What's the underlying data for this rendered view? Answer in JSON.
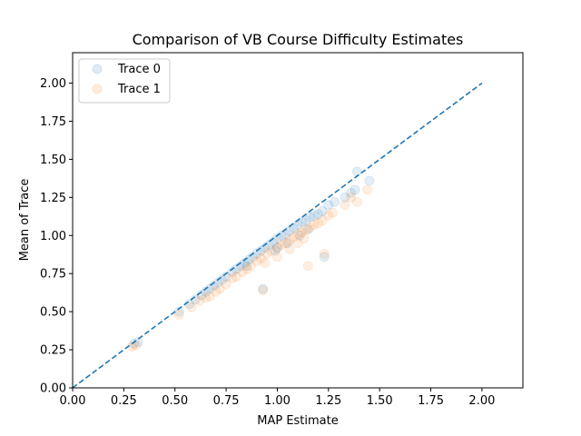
{
  "chart_data": {
    "type": "scatter",
    "title": "Comparison of VB Course Difficulty Estimates",
    "xlabel": "MAP Estimate",
    "ylabel": "Mean of Trace",
    "xlim": [
      0.0,
      2.2
    ],
    "ylim": [
      0.0,
      2.2
    ],
    "xticks": [
      "0.00",
      "0.25",
      "0.50",
      "0.75",
      "1.00",
      "1.25",
      "1.50",
      "1.75",
      "2.00"
    ],
    "yticks": [
      "0.00",
      "0.25",
      "0.50",
      "0.75",
      "1.00",
      "1.25",
      "1.50",
      "1.75",
      "2.00"
    ],
    "grid": false,
    "legend_position": "top-left",
    "reference_line": {
      "x": [
        0.0,
        2.0
      ],
      "y": [
        0.0,
        2.0
      ],
      "style": "dashed",
      "color": "#1f77b4"
    },
    "series": [
      {
        "name": "Trace 0",
        "color": "#1f77b4",
        "opacity": 0.12,
        "points": [
          [
            0.3,
            0.29
          ],
          [
            0.32,
            0.3
          ],
          [
            0.52,
            0.5
          ],
          [
            0.57,
            0.55
          ],
          [
            0.6,
            0.58
          ],
          [
            0.63,
            0.61
          ],
          [
            0.65,
            0.63
          ],
          [
            0.67,
            0.65
          ],
          [
            0.69,
            0.67
          ],
          [
            0.71,
            0.69
          ],
          [
            0.73,
            0.71
          ],
          [
            0.75,
            0.73
          ],
          [
            0.78,
            0.76
          ],
          [
            0.8,
            0.78
          ],
          [
            0.82,
            0.8
          ],
          [
            0.84,
            0.82
          ],
          [
            0.86,
            0.84
          ],
          [
            0.88,
            0.86
          ],
          [
            0.9,
            0.88
          ],
          [
            0.92,
            0.9
          ],
          [
            0.94,
            0.92
          ],
          [
            0.96,
            0.94
          ],
          [
            0.98,
            0.96
          ],
          [
            1.0,
            0.98
          ],
          [
            1.02,
            1.0
          ],
          [
            1.04,
            1.01
          ],
          [
            1.06,
            1.03
          ],
          [
            1.08,
            1.05
          ],
          [
            1.1,
            1.07
          ],
          [
            1.12,
            1.09
          ],
          [
            1.14,
            1.1
          ],
          [
            1.16,
            1.12
          ],
          [
            1.18,
            1.13
          ],
          [
            1.2,
            1.14
          ],
          [
            1.22,
            1.16
          ],
          [
            1.25,
            1.2
          ],
          [
            1.28,
            1.22
          ],
          [
            1.33,
            1.25
          ],
          [
            1.36,
            1.28
          ],
          [
            1.38,
            1.3
          ],
          [
            1.39,
            1.42
          ],
          [
            1.45,
            1.36
          ],
          [
            0.93,
            0.65
          ],
          [
            1.23,
            0.86
          ],
          [
            0.99,
            0.9
          ],
          [
            1.05,
            0.95
          ],
          [
            1.11,
            1.0
          ],
          [
            1.15,
            1.04
          ],
          [
            0.85,
            0.8
          ],
          [
            1.0,
            0.92
          ]
        ]
      },
      {
        "name": "Trace 1",
        "color": "#ff7f0e",
        "opacity": 0.12,
        "points": [
          [
            0.29,
            0.27
          ],
          [
            0.31,
            0.28
          ],
          [
            0.52,
            0.48
          ],
          [
            0.58,
            0.53
          ],
          [
            0.62,
            0.57
          ],
          [
            0.65,
            0.59
          ],
          [
            0.67,
            0.6
          ],
          [
            0.7,
            0.63
          ],
          [
            0.72,
            0.65
          ],
          [
            0.75,
            0.68
          ],
          [
            0.78,
            0.72
          ],
          [
            0.8,
            0.73
          ],
          [
            0.83,
            0.76
          ],
          [
            0.85,
            0.78
          ],
          [
            0.87,
            0.8
          ],
          [
            0.9,
            0.83
          ],
          [
            0.92,
            0.85
          ],
          [
            0.95,
            0.88
          ],
          [
            0.97,
            0.9
          ],
          [
            1.0,
            0.92
          ],
          [
            1.02,
            0.94
          ],
          [
            1.04,
            0.95
          ],
          [
            1.06,
            0.97
          ],
          [
            1.08,
            0.99
          ],
          [
            1.1,
            1.01
          ],
          [
            1.12,
            1.02
          ],
          [
            1.14,
            1.04
          ],
          [
            1.16,
            1.05
          ],
          [
            1.18,
            1.07
          ],
          [
            1.2,
            1.08
          ],
          [
            1.22,
            1.1
          ],
          [
            1.25,
            1.13
          ],
          [
            1.27,
            1.15
          ],
          [
            1.33,
            1.2
          ],
          [
            1.36,
            1.25
          ],
          [
            1.39,
            1.22
          ],
          [
            1.44,
            1.3
          ],
          [
            1.15,
            0.8
          ],
          [
            0.93,
            0.64
          ],
          [
            1.23,
            0.88
          ],
          [
            1.0,
            0.86
          ],
          [
            1.06,
            0.91
          ],
          [
            1.1,
            0.95
          ],
          [
            0.94,
            0.82
          ],
          [
            1.13,
            0.98
          ]
        ]
      }
    ]
  }
}
